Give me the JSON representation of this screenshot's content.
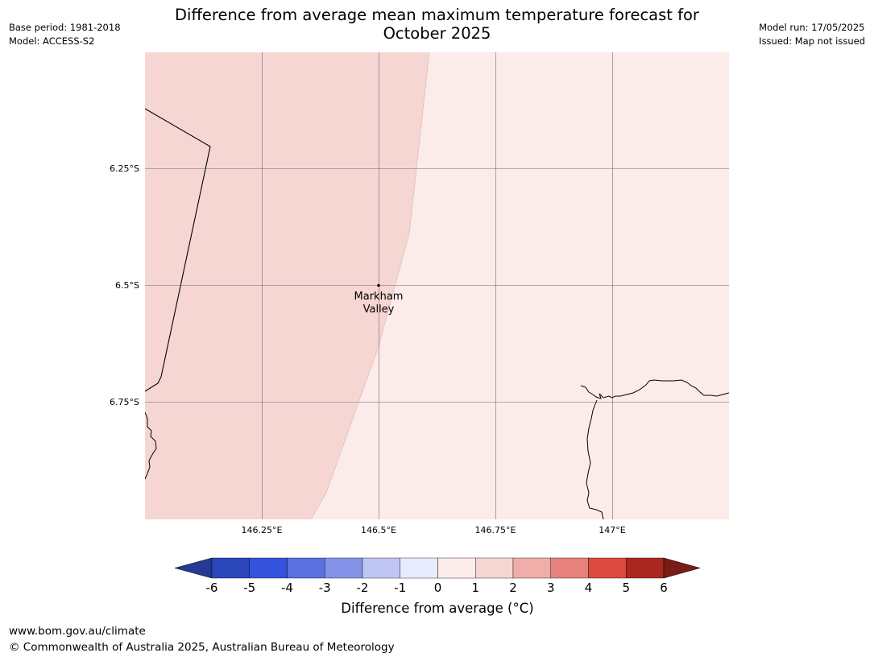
{
  "header": {
    "base_period": "Base period: 1981-2018",
    "model": "Model: ACCESS-S2",
    "title_line1": "Difference from average mean maximum temperature forecast for",
    "title_line2": "October 2025",
    "model_run": "Model run: 17/05/2025",
    "issued": "Issued: Map not issued"
  },
  "map": {
    "lat_labels": [
      "6.25°S",
      "6.5°S",
      "6.75°S"
    ],
    "lon_labels": [
      "146.25°E",
      "146.5°E",
      "146.75°E",
      "147°E"
    ],
    "place": {
      "name_line1": "Markham",
      "name_line2": "Valley"
    },
    "regions": [
      {
        "name": "west-region",
        "category": "1 to 2",
        "color": "#f6d6d3"
      },
      {
        "name": "east-region",
        "category": "0 to 1",
        "color": "#fbebe9"
      }
    ]
  },
  "legend": {
    "title": "Difference from average (°C)",
    "ticks": [
      "-6",
      "-5",
      "-4",
      "-3",
      "-2",
      "-1",
      "0",
      "1",
      "2",
      "3",
      "4",
      "5",
      "6"
    ],
    "colors": [
      "#243a94",
      "#2a46b8",
      "#3452dc",
      "#5a70e0",
      "#8594e8",
      "#c0c6f4",
      "#e8ebfb",
      "#fcecea",
      "#f6d6d3",
      "#efaea9",
      "#e6827b",
      "#db4a3e",
      "#ab2820",
      "#7a1c16"
    ]
  },
  "footer": {
    "url": "www.bom.gov.au/climate",
    "copyright": "© Commonwealth of Australia 2025, Australian Bureau of Meteorology"
  }
}
